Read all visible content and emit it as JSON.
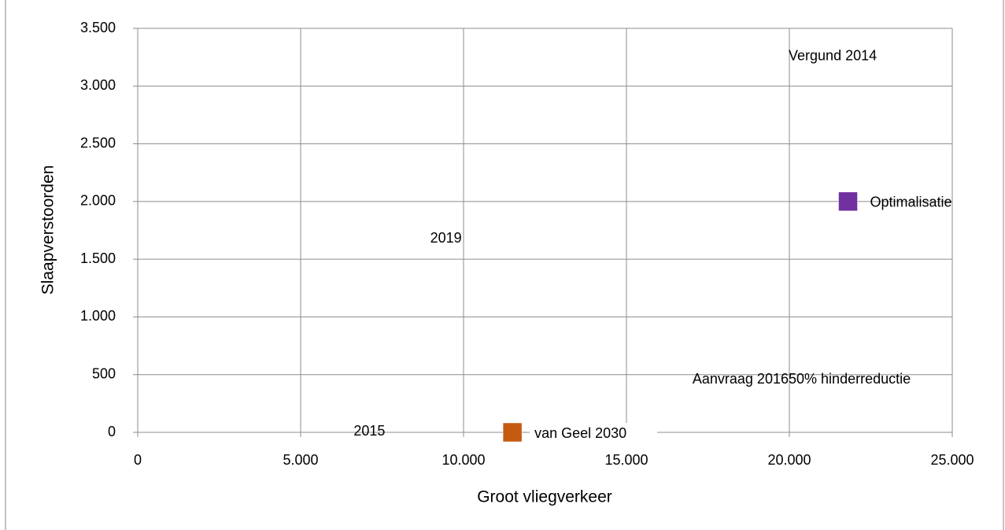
{
  "chart_data": {
    "type": "scatter",
    "x_label": "Groot vliegverkeer",
    "y_label": "Slaapverstoorden",
    "xlim": [
      0,
      25000
    ],
    "ylim": [
      0,
      3500
    ],
    "xticks": [
      0,
      {
        "value": 5000,
        "label": "5.000"
      },
      {
        "value": 10000,
        "label": "10.000"
      },
      {
        "value": 15000,
        "label": "15.000"
      },
      {
        "value": 20000,
        "label": "20.000"
      },
      {
        "value": 25000,
        "label": "25.000"
      }
    ],
    "yticks": [
      0,
      500,
      {
        "value": 1000,
        "label": "1.000"
      },
      {
        "value": 1500,
        "label": "1.500"
      },
      {
        "value": 2000,
        "label": "2.000"
      },
      {
        "value": 2500,
        "label": "2.500"
      },
      {
        "value": 3000,
        "label": "3.000"
      },
      {
        "value": 3500,
        "label": "3.500"
      }
    ],
    "grid": true,
    "series": [
      {
        "name": "Vergund 2014",
        "color": "none",
        "x": [
          19300
        ],
        "values": [
          3270
        ]
      },
      {
        "name": "Optimalisatie",
        "color": "#7030a0",
        "x": [
          21800
        ],
        "values": [
          2000
        ]
      },
      {
        "name": "2019",
        "color": "none",
        "x": [
          8300
        ],
        "values": [
          1690
        ]
      },
      {
        "name": "Aanvraag 2016",
        "color": "none",
        "x": [
          16350
        ],
        "values": [
          470
        ]
      },
      {
        "name": "50% hinderreductie",
        "color": "none",
        "x": [
          19300
        ],
        "values": [
          470
        ]
      },
      {
        "name": "2015",
        "color": "none",
        "x": [
          5950
        ],
        "values": [
          20
        ]
      },
      {
        "name": "van Geel 2030",
        "color": "#c55a11",
        "x": [
          11500
        ],
        "values": [
          0
        ]
      }
    ]
  }
}
